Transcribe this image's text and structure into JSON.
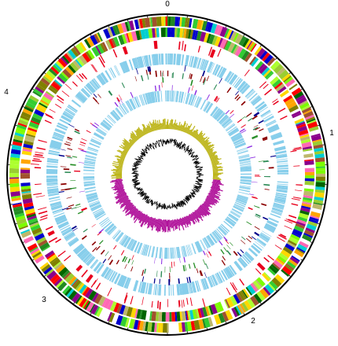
{
  "genome_map": {
    "position_labels": [
      "0",
      "1",
      "2",
      "3",
      "4"
    ],
    "colors": {
      "backbone": "#000000",
      "cog_palette": [
        "#ADFF2F",
        "#7CFC00",
        "#32CD32",
        "#228B22",
        "#FFD700",
        "#FFA500",
        "#FF0000",
        "#0000CD",
        "#8B008B",
        "#FF69B4",
        "#A0522D",
        "#006400",
        "#BDB76B",
        "#9ACD32",
        "#00CED1",
        "#808000"
      ],
      "ncrna": "#E8001C",
      "cds_light": "#87CEEB",
      "trna": "#8B0000",
      "rrna": "#2E8B57",
      "misc_green": "#228B22",
      "misc_purple": "#8A2BE2",
      "misc_blue": "#00008B",
      "gc_content_fill": "#BDB51A",
      "gc_skew_positive": "#AAA000",
      "gc_skew_negative": "#B0129A",
      "gc_line": "#000000"
    }
  }
}
